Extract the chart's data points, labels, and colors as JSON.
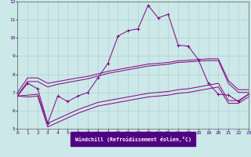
{
  "xlabel": "Windchill (Refroidissement éolien,°C)",
  "x_values": [
    0,
    1,
    2,
    3,
    4,
    5,
    6,
    7,
    8,
    9,
    10,
    11,
    12,
    13,
    14,
    15,
    16,
    17,
    18,
    19,
    20,
    21,
    22,
    23
  ],
  "line_main": [
    6.8,
    7.5,
    7.2,
    5.3,
    6.8,
    6.5,
    6.8,
    7.0,
    7.8,
    8.6,
    10.1,
    10.4,
    10.5,
    11.8,
    11.1,
    11.3,
    9.6,
    9.55,
    8.8,
    7.5,
    6.9,
    6.85,
    6.5,
    6.9
  ],
  "line_upper1": [
    6.85,
    7.6,
    7.6,
    7.3,
    7.45,
    7.55,
    7.65,
    7.75,
    7.9,
    8.05,
    8.15,
    8.25,
    8.35,
    8.45,
    8.5,
    8.55,
    8.65,
    8.68,
    8.72,
    8.75,
    8.75,
    7.5,
    7.0,
    7.0
  ],
  "line_upper2": [
    7.0,
    7.8,
    7.8,
    7.5,
    7.6,
    7.7,
    7.8,
    7.88,
    8.02,
    8.16,
    8.26,
    8.36,
    8.46,
    8.56,
    8.6,
    8.65,
    8.74,
    8.77,
    8.81,
    8.85,
    8.85,
    7.65,
    7.15,
    7.15
  ],
  "line_lower1": [
    6.8,
    6.85,
    6.9,
    5.3,
    5.55,
    5.8,
    6.05,
    6.25,
    6.45,
    6.55,
    6.65,
    6.75,
    6.85,
    6.95,
    7.0,
    7.05,
    7.15,
    7.2,
    7.3,
    7.4,
    7.5,
    6.55,
    6.55,
    6.9
  ],
  "line_lower2": [
    6.8,
    6.75,
    6.8,
    5.1,
    5.35,
    5.6,
    5.85,
    6.05,
    6.25,
    6.35,
    6.45,
    6.55,
    6.65,
    6.75,
    6.8,
    6.85,
    6.95,
    7.0,
    7.1,
    7.2,
    7.3,
    6.4,
    6.4,
    6.75
  ],
  "line_color": "#800080",
  "bg_color": "#cce8e8",
  "grid_color": "#aacccc",
  "ylim": [
    5,
    12
  ],
  "xlim": [
    0,
    23
  ],
  "yticks": [
    5,
    6,
    7,
    8,
    9,
    10,
    11,
    12
  ],
  "xticks": [
    0,
    1,
    2,
    3,
    4,
    5,
    6,
    7,
    8,
    9,
    10,
    11,
    12,
    13,
    14,
    15,
    16,
    17,
    18,
    19,
    20,
    21,
    22,
    23
  ]
}
